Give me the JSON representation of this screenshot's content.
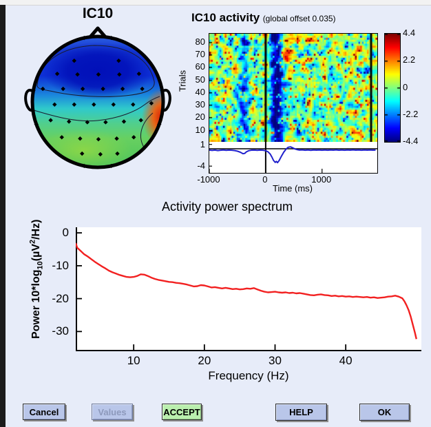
{
  "window": {
    "dialog_bg": "#e7ecf9",
    "titlebar_color": "#f2f2f2",
    "desktop_strip_color": "#1b1b1b"
  },
  "chart_data": [
    {
      "type": "topomap",
      "title": "IC10",
      "colormap": "jet",
      "description": "Scalp map of independent component IC10: frontal region deep blue (negative), mid scalp cyan, posterior green, strong red-orange hotspot at right posterior rim; black diamond electrode markers; head outline with nose and ears",
      "head_outline_color": "#000000",
      "electrodes": [
        [
          -0.36,
          -0.63
        ],
        [
          0.32,
          -0.63
        ],
        [
          -0.62,
          -0.43
        ],
        [
          -0.31,
          -0.42
        ],
        [
          0.01,
          -0.42
        ],
        [
          0.33,
          -0.42
        ],
        [
          0.63,
          -0.43
        ],
        [
          -0.84,
          -0.2
        ],
        [
          -0.53,
          -0.2
        ],
        [
          -0.23,
          -0.2
        ],
        [
          0.08,
          -0.2
        ],
        [
          0.38,
          -0.2
        ],
        [
          0.68,
          -0.2
        ],
        [
          -0.66,
          0.04
        ],
        [
          -0.36,
          0.04
        ],
        [
          -0.06,
          0.04
        ],
        [
          0.24,
          0.04
        ],
        [
          0.54,
          0.04
        ],
        [
          0.82,
          0.02
        ],
        [
          -0.72,
          0.28
        ],
        [
          -0.44,
          0.3
        ],
        [
          -0.16,
          0.31
        ],
        [
          0.12,
          0.31
        ],
        [
          0.4,
          0.3
        ],
        [
          0.66,
          0.28
        ],
        [
          -0.55,
          0.54
        ],
        [
          -0.27,
          0.56
        ],
        [
          0.01,
          0.57
        ],
        [
          0.29,
          0.56
        ],
        [
          0.55,
          0.54
        ],
        [
          -0.24,
          0.79
        ],
        [
          0.04,
          0.8
        ],
        [
          0.3,
          0.79
        ]
      ],
      "rim_electrode_angles_deg": [
        12,
        -12,
        45,
        -45,
        80,
        -80,
        110,
        -110,
        140,
        -140,
        168,
        -168
      ]
    },
    {
      "type": "heatmap",
      "title": "IC10 activity",
      "subtitle": "(global offset 0.035)",
      "ylabel": "Trials",
      "trial_ticks": [
        80,
        70,
        60,
        50,
        40,
        30,
        20,
        10
      ],
      "n_trials": 86,
      "time_range_ms": [
        -1000,
        1980
      ],
      "time_ticks_ms": [
        -1000,
        0,
        1000
      ],
      "event_time_ms": 0,
      "second_vline_ms": 1870,
      "colorbar": {
        "ticks": [
          4.4,
          2.2,
          0,
          -2.2,
          -4.4
        ],
        "clim": [
          -4.4,
          4.4
        ],
        "colormap": "jet"
      },
      "features": {
        "post_stimulus_blue_band_ms": [
          80,
          320
        ],
        "pre_stimulus_blue_band_ms": [
          -450,
          -320
        ],
        "red_blob": {
          "time_ms": [
            250,
            500
          ],
          "trials": [
            63,
            74
          ]
        }
      }
    },
    {
      "type": "line",
      "name": "component-erp",
      "color": "#2020cc",
      "amp_ticks": [
        1,
        -4
      ],
      "xlabel": "Time (ms)",
      "points": [
        [
          -1000,
          -0.3
        ],
        [
          -950,
          -0.38
        ],
        [
          -900,
          -0.3
        ],
        [
          -850,
          -0.42
        ],
        [
          -800,
          -0.33
        ],
        [
          -750,
          -0.28
        ],
        [
          -700,
          -0.36
        ],
        [
          -650,
          -0.3
        ],
        [
          -600,
          -0.34
        ],
        [
          -550,
          -0.42
        ],
        [
          -500,
          -0.55
        ],
        [
          -450,
          -0.8
        ],
        [
          -400,
          -1.15
        ],
        [
          -370,
          -1.05
        ],
        [
          -340,
          -0.7
        ],
        [
          -300,
          -0.45
        ],
        [
          -250,
          -0.32
        ],
        [
          -200,
          -0.3
        ],
        [
          -150,
          -0.36
        ],
        [
          -100,
          -0.3
        ],
        [
          -50,
          -0.34
        ],
        [
          0,
          -0.45
        ],
        [
          40,
          -0.7
        ],
        [
          80,
          -1.2
        ],
        [
          110,
          -1.9
        ],
        [
          140,
          -2.7
        ],
        [
          170,
          -3.15
        ],
        [
          190,
          -2.9
        ],
        [
          210,
          -3.2
        ],
        [
          240,
          -2.7
        ],
        [
          280,
          -1.7
        ],
        [
          320,
          -0.8
        ],
        [
          360,
          -0.1
        ],
        [
          400,
          0.35
        ],
        [
          440,
          0.45
        ],
        [
          480,
          0.2
        ],
        [
          520,
          -0.05
        ],
        [
          560,
          -0.2
        ],
        [
          600,
          -0.3
        ],
        [
          650,
          -0.25
        ],
        [
          700,
          -0.33
        ],
        [
          750,
          -0.27
        ],
        [
          800,
          -0.35
        ],
        [
          850,
          -0.28
        ],
        [
          900,
          -0.32
        ],
        [
          950,
          -0.27
        ],
        [
          1000,
          -0.33
        ],
        [
          1050,
          -0.28
        ],
        [
          1100,
          -0.34
        ],
        [
          1150,
          -0.27
        ],
        [
          1200,
          -0.32
        ],
        [
          1250,
          -0.26
        ],
        [
          1300,
          -0.33
        ],
        [
          1350,
          -0.28
        ],
        [
          1400,
          -0.34
        ],
        [
          1450,
          -0.27
        ],
        [
          1500,
          -0.32
        ],
        [
          1550,
          -0.26
        ],
        [
          1600,
          -0.32
        ],
        [
          1650,
          -0.28
        ],
        [
          1700,
          -0.34
        ],
        [
          1750,
          -0.28
        ],
        [
          1800,
          -0.31
        ],
        [
          1850,
          -0.27
        ],
        [
          1900,
          -0.32
        ],
        [
          1950,
          -0.3
        ]
      ]
    },
    {
      "type": "line",
      "name": "activity-power-spectrum",
      "title": "Activity power spectrum",
      "xlabel": "Frequency (Hz)",
      "ylabel": "Power 10*log10(µV²/Hz)",
      "ylabel_parts": {
        "prefix": "Power 10*log",
        "sub": "10",
        "open": "(µV",
        "sup": "2",
        "close": "/Hz)"
      },
      "xticks": [
        10,
        20,
        30,
        40
      ],
      "yticks": [
        0,
        -10,
        -20,
        -30
      ],
      "xlim": [
        1.8,
        50.7
      ],
      "ylim": [
        -36,
        1.7
      ],
      "color": "#f22020",
      "points": [
        [
          1.8,
          -3.1
        ],
        [
          2,
          -4.5
        ],
        [
          2.5,
          -5.5
        ],
        [
          3,
          -6.5
        ],
        [
          3.5,
          -7.2
        ],
        [
          4,
          -8
        ],
        [
          4.5,
          -8.8
        ],
        [
          5,
          -9.5
        ],
        [
          5.5,
          -10.2
        ],
        [
          6,
          -10.8
        ],
        [
          6.5,
          -11.5
        ],
        [
          7,
          -12
        ],
        [
          7.5,
          -12.4
        ],
        [
          8,
          -12.8
        ],
        [
          8.5,
          -13.1
        ],
        [
          9,
          -13.4
        ],
        [
          9.5,
          -13.5
        ],
        [
          10,
          -13.4
        ],
        [
          10.5,
          -13.1
        ],
        [
          11,
          -12.6
        ],
        [
          11.5,
          -12.7
        ],
        [
          12,
          -13.1
        ],
        [
          12.5,
          -13.6
        ],
        [
          13,
          -14
        ],
        [
          13.5,
          -14.3
        ],
        [
          14,
          -14.5
        ],
        [
          14.5,
          -14.7
        ],
        [
          15,
          -14.9
        ],
        [
          15.5,
          -15
        ],
        [
          16,
          -15.2
        ],
        [
          16.5,
          -15.3
        ],
        [
          17,
          -15.5
        ],
        [
          17.5,
          -15.7
        ],
        [
          18,
          -16
        ],
        [
          18.5,
          -16.3
        ],
        [
          19,
          -16.2
        ],
        [
          19.5,
          -15.9
        ],
        [
          20,
          -16
        ],
        [
          20.5,
          -16.3
        ],
        [
          21,
          -16.6
        ],
        [
          21.5,
          -16.5
        ],
        [
          22,
          -16.7
        ],
        [
          22.5,
          -16.9
        ],
        [
          23,
          -16.7
        ],
        [
          23.5,
          -16.9
        ],
        [
          24,
          -17.1
        ],
        [
          24.5,
          -17
        ],
        [
          25,
          -17.2
        ],
        [
          25.5,
          -17.1
        ],
        [
          26,
          -16.9
        ],
        [
          26.5,
          -17
        ],
        [
          27,
          -16.8
        ],
        [
          27.5,
          -17.2
        ],
        [
          28,
          -17.6
        ],
        [
          28.5,
          -17.9
        ],
        [
          29,
          -18.1
        ],
        [
          29.5,
          -18
        ],
        [
          30,
          -17.9
        ],
        [
          30.5,
          -18.1
        ],
        [
          31,
          -18.2
        ],
        [
          31.5,
          -18.1
        ],
        [
          32,
          -18.3
        ],
        [
          32.5,
          -18.2
        ],
        [
          33,
          -18.4
        ],
        [
          33.5,
          -18.3
        ],
        [
          34,
          -18.5
        ],
        [
          34.5,
          -18.7
        ],
        [
          35,
          -18.9
        ],
        [
          35.5,
          -19
        ],
        [
          36,
          -18.8
        ],
        [
          36.5,
          -18.7
        ],
        [
          37,
          -18.9
        ],
        [
          37.5,
          -19
        ],
        [
          38,
          -19.2
        ],
        [
          38.5,
          -19.1
        ],
        [
          39,
          -19.3
        ],
        [
          39.5,
          -19.2
        ],
        [
          40,
          -19.4
        ],
        [
          40.5,
          -19.3
        ],
        [
          41,
          -19.5
        ],
        [
          41.5,
          -19.4
        ],
        [
          42,
          -19.5
        ],
        [
          42.5,
          -19.6
        ],
        [
          43,
          -19.5
        ],
        [
          43.5,
          -19.7
        ],
        [
          44,
          -19.6
        ],
        [
          44.5,
          -19.8
        ],
        [
          45,
          -19.7
        ],
        [
          45.5,
          -19.6
        ],
        [
          46,
          -19.4
        ],
        [
          46.5,
          -19.3
        ],
        [
          47,
          -19.1
        ],
        [
          47.5,
          -19.4
        ],
        [
          48,
          -19.9
        ],
        [
          48.3,
          -20.8
        ],
        [
          48.6,
          -22
        ],
        [
          48.9,
          -23.5
        ],
        [
          49.2,
          -25.5
        ],
        [
          49.5,
          -28
        ],
        [
          49.8,
          -30.5
        ],
        [
          50,
          -32.3
        ]
      ]
    }
  ],
  "buttons": [
    {
      "label": "Cancel",
      "enabled": true,
      "variant": "default"
    },
    {
      "label": "Values",
      "enabled": false,
      "variant": "default"
    },
    {
      "label": "ACCEPT",
      "enabled": true,
      "variant": "accept"
    },
    {
      "label": "HELP",
      "enabled": true,
      "variant": "default"
    },
    {
      "label": "OK",
      "enabled": true,
      "variant": "default"
    }
  ],
  "colors": {
    "button_face": "#b9c6e9",
    "button_accept_face": "#baefae",
    "button_disabled_text": "#8d99bb",
    "erp_trace_blue": "#2020cc",
    "spectrum_red": "#f22020"
  }
}
